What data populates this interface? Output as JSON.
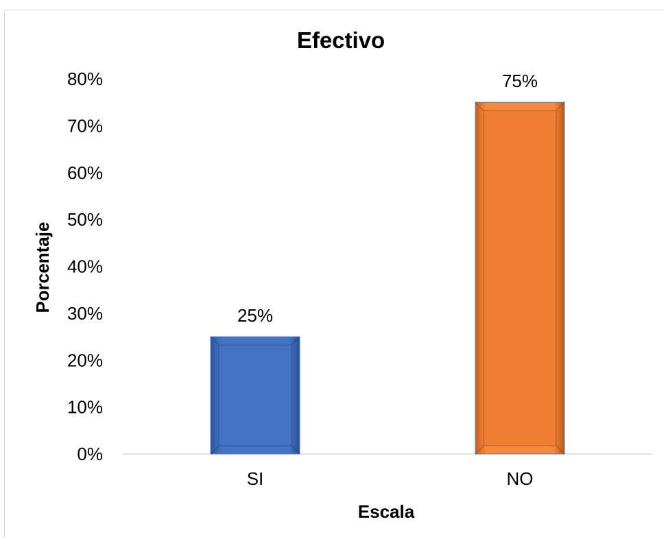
{
  "chart_data": {
    "type": "bar",
    "title": "Efectivo",
    "xlabel": "Escala",
    "ylabel": "Porcentaje",
    "categories": [
      "SI",
      "NO"
    ],
    "values": [
      25,
      75
    ],
    "value_labels": [
      "25%",
      "75%"
    ],
    "ylim": [
      0,
      80
    ],
    "yticks": [
      0,
      10,
      20,
      30,
      40,
      50,
      60,
      70,
      80
    ],
    "ytick_labels": [
      "0%",
      "10%",
      "20%",
      "30%",
      "40%",
      "50%",
      "60%",
      "70%",
      "80%"
    ],
    "bar_colors": [
      "#4472C4",
      "#ED7D31"
    ],
    "grid": false,
    "legend": "none"
  }
}
